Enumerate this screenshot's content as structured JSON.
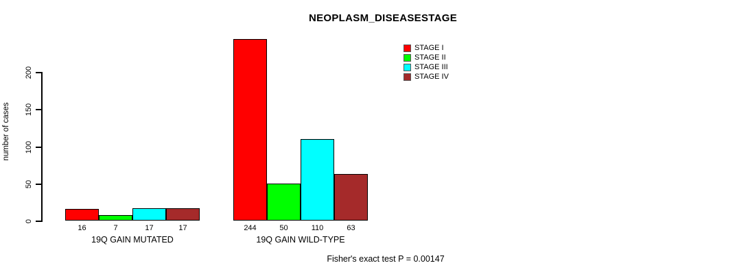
{
  "chart_data": {
    "type": "bar",
    "title": "NEOPLASM_DISEASESTAGE",
    "ylabel": "number of cases",
    "xlabel": "",
    "ylim": [
      0,
      200
    ],
    "yticks": [
      0,
      50,
      100,
      150,
      200
    ],
    "grid": false,
    "legend_position": "top-right",
    "series": [
      {
        "name": "STAGE I",
        "color": "#FF0000"
      },
      {
        "name": "STAGE II",
        "color": "#00FF00"
      },
      {
        "name": "STAGE III",
        "color": "#00FFFF"
      },
      {
        "name": "STAGE IV",
        "color": "#A52A2A"
      }
    ],
    "groups": [
      {
        "label": "19Q GAIN MUTATED",
        "values": [
          16,
          7,
          17,
          17
        ]
      },
      {
        "label": "19Q GAIN WILD-TYPE",
        "values": [
          244,
          50,
          110,
          63
        ]
      }
    ],
    "annotation": "Fisher's exact test P = 0.00147"
  }
}
